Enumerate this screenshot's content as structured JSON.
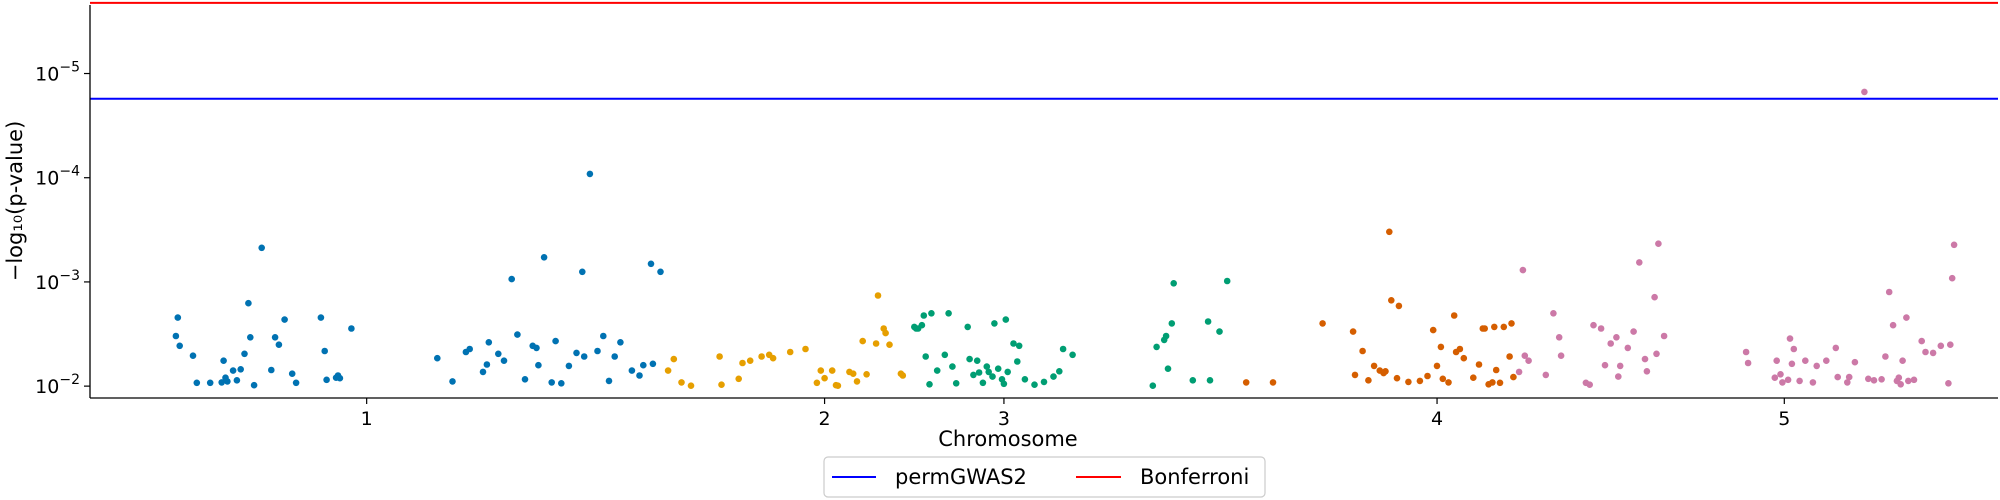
{
  "chart_data": {
    "type": "scatter",
    "title": "",
    "xlabel": "Chromosome",
    "ylabel": "−log₁₀(p-value)",
    "yscale": "log-reversed (p-value)",
    "ylim_p": [
      0.013,
      2.2e-06
    ],
    "ytick_labels": [
      {
        "p": 0.01,
        "base": "10",
        "exp": "−2"
      },
      {
        "p": 0.001,
        "base": "10",
        "exp": "−3"
      },
      {
        "p": 0.0001,
        "base": "10",
        "exp": "−4"
      },
      {
        "p": 1e-05,
        "base": "10",
        "exp": "−5"
      }
    ],
    "xticks": [
      {
        "label": "1",
        "pos": 0.145
      },
      {
        "label": "2",
        "pos": 0.385
      },
      {
        "label": "3",
        "pos": 0.479
      },
      {
        "label": "4",
        "pos": 0.706
      },
      {
        "label": "5",
        "pos": 0.888
      }
    ],
    "xlim": [
      0,
      1
    ],
    "chromosome_colors": [
      "#0072B2",
      "#E69F00",
      "#009E73",
      "#D55E00",
      "#CC79A7"
    ],
    "thresholds": [
      {
        "name": "permGWAS2",
        "p": 1.75e-05,
        "color": "#0000FF"
      },
      {
        "name": "Bonferroni",
        "p": 2.1e-06,
        "color": "#FF0000"
      }
    ],
    "legend_position": "bottom-center",
    "grid": false,
    "series": [
      {
        "chromosome": "1",
        "color_index": 0,
        "points": [
          [
            0.045,
            0.0033
          ],
          [
            0.046,
            0.0022
          ],
          [
            0.047,
            0.0041
          ],
          [
            0.054,
            0.0051
          ],
          [
            0.056,
            0.0093
          ],
          [
            0.063,
            0.0093
          ],
          [
            0.069,
            0.0092
          ],
          [
            0.07,
            0.0057
          ],
          [
            0.071,
            0.0083
          ],
          [
            0.072,
            0.009
          ],
          [
            0.075,
            0.0071
          ],
          [
            0.077,
            0.0088
          ],
          [
            0.079,
            0.0069
          ],
          [
            0.081,
            0.0049
          ],
          [
            0.083,
            0.0016
          ],
          [
            0.084,
            0.0034
          ],
          [
            0.086,
            0.0098
          ],
          [
            0.09,
            0.00047
          ],
          [
            0.095,
            0.007
          ],
          [
            0.097,
            0.0034
          ],
          [
            0.099,
            0.004
          ],
          [
            0.102,
            0.0023
          ],
          [
            0.106,
            0.0076
          ],
          [
            0.108,
            0.0093
          ],
          [
            0.121,
            0.0022
          ],
          [
            0.123,
            0.0046
          ],
          [
            0.124,
            0.0087
          ],
          [
            0.129,
            0.0083
          ],
          [
            0.13,
            0.0079
          ],
          [
            0.131,
            0.0084
          ],
          [
            0.137,
            0.0028
          ],
          [
            0.182,
            0.0054
          ],
          [
            0.19,
            0.009
          ],
          [
            0.197,
            0.0047
          ],
          [
            0.199,
            0.0044
          ],
          [
            0.206,
            0.0073
          ],
          [
            0.208,
            0.0062
          ],
          [
            0.209,
            0.0038
          ],
          [
            0.214,
            0.0049
          ],
          [
            0.217,
            0.0057
          ],
          [
            0.221,
            0.00094
          ],
          [
            0.224,
            0.0032
          ],
          [
            0.228,
            0.0086
          ],
          [
            0.232,
            0.0041
          ],
          [
            0.234,
            0.0043
          ],
          [
            0.235,
            0.0063
          ],
          [
            0.238,
            0.00058
          ],
          [
            0.242,
            0.0092
          ],
          [
            0.244,
            0.0037
          ],
          [
            0.247,
            0.0094
          ],
          [
            0.251,
            0.0064
          ],
          [
            0.255,
            0.0048
          ],
          [
            0.258,
            0.0008
          ],
          [
            0.259,
            0.0052
          ],
          [
            0.262,
            9.2e-05
          ],
          [
            0.266,
            0.0046
          ],
          [
            0.269,
            0.0033
          ],
          [
            0.272,
            0.0089
          ],
          [
            0.275,
            0.0052
          ],
          [
            0.278,
            0.0038
          ],
          [
            0.284,
            0.0071
          ],
          [
            0.288,
            0.0079
          ],
          [
            0.29,
            0.0063
          ],
          [
            0.294,
            0.00067
          ],
          [
            0.295,
            0.0061
          ],
          [
            0.299,
            0.0008
          ]
        ]
      },
      {
        "chromosome": "2",
        "color_index": 1,
        "points": [
          [
            0.303,
            0.0071
          ],
          [
            0.306,
            0.0055
          ],
          [
            0.31,
            0.0092
          ],
          [
            0.315,
            0.0099
          ],
          [
            0.33,
            0.0052
          ],
          [
            0.331,
            0.0097
          ],
          [
            0.34,
            0.0085
          ],
          [
            0.342,
            0.006
          ],
          [
            0.346,
            0.0057
          ],
          [
            0.352,
            0.0052
          ],
          [
            0.356,
            0.005
          ],
          [
            0.358,
            0.0054
          ],
          [
            0.367,
            0.0047
          ],
          [
            0.375,
            0.0044
          ],
          [
            0.381,
            0.0093
          ],
          [
            0.383,
            0.0071
          ],
          [
            0.385,
            0.0084
          ],
          [
            0.389,
            0.0071
          ],
          [
            0.391,
            0.0098
          ],
          [
            0.392,
            0.0099
          ],
          [
            0.398,
            0.0073
          ],
          [
            0.4,
            0.0076
          ],
          [
            0.402,
            0.009
          ],
          [
            0.405,
            0.0037
          ],
          [
            0.407,
            0.0077
          ],
          [
            0.412,
            0.0039
          ],
          [
            0.413,
            0.00135
          ],
          [
            0.416,
            0.0028
          ],
          [
            0.417,
            0.0031
          ],
          [
            0.419,
            0.004
          ],
          [
            0.425,
            0.0076
          ],
          [
            0.426,
            0.0079
          ]
        ]
      },
      {
        "chromosome": "3",
        "color_index": 2,
        "points": [
          [
            0.432,
            0.0027
          ],
          [
            0.433,
            0.0028
          ],
          [
            0.434,
            0.0028
          ],
          [
            0.436,
            0.0026
          ],
          [
            0.437,
            0.0021
          ],
          [
            0.438,
            0.0052
          ],
          [
            0.44,
            0.0096
          ],
          [
            0.441,
            0.002
          ],
          [
            0.444,
            0.0071
          ],
          [
            0.448,
            0.005
          ],
          [
            0.45,
            0.002
          ],
          [
            0.452,
            0.0065
          ],
          [
            0.454,
            0.0094
          ],
          [
            0.46,
            0.0027
          ],
          [
            0.461,
            0.0055
          ],
          [
            0.463,
            0.0078
          ],
          [
            0.465,
            0.0057
          ],
          [
            0.466,
            0.0074
          ],
          [
            0.468,
            0.0093
          ],
          [
            0.47,
            0.0065
          ],
          [
            0.471,
            0.0073
          ],
          [
            0.473,
            0.0081
          ],
          [
            0.474,
            0.0025
          ],
          [
            0.476,
            0.0068
          ],
          [
            0.478,
            0.0086
          ],
          [
            0.479,
            0.0095
          ],
          [
            0.48,
            0.0023
          ],
          [
            0.481,
            0.0073
          ],
          [
            0.484,
            0.0039
          ],
          [
            0.486,
            0.0058
          ],
          [
            0.487,
            0.0041
          ],
          [
            0.49,
            0.0086
          ],
          [
            0.495,
            0.0097
          ],
          [
            0.5,
            0.0091
          ],
          [
            0.505,
            0.0081
          ],
          [
            0.508,
            0.0072
          ],
          [
            0.51,
            0.0044
          ],
          [
            0.515,
            0.005
          ],
          [
            0.557,
            0.0099
          ],
          [
            0.559,
            0.0042
          ],
          [
            0.563,
            0.0036
          ],
          [
            0.564,
            0.0033
          ],
          [
            0.565,
            0.0068
          ],
          [
            0.567,
            0.0025
          ],
          [
            0.568,
            0.00103
          ],
          [
            0.578,
            0.0088
          ],
          [
            0.586,
            0.0024
          ],
          [
            0.587,
            0.0088
          ],
          [
            0.592,
            0.003
          ],
          [
            0.596,
            0.00098
          ]
        ]
      },
      {
        "chromosome": "4",
        "color_index": 3,
        "points": [
          [
            0.606,
            0.0092
          ],
          [
            0.62,
            0.0092
          ],
          [
            0.646,
            0.0025
          ],
          [
            0.662,
            0.003
          ],
          [
            0.663,
            0.0078
          ],
          [
            0.667,
            0.0046
          ],
          [
            0.67,
            0.0088
          ],
          [
            0.673,
            0.0064
          ],
          [
            0.676,
            0.0071
          ],
          [
            0.678,
            0.0075
          ],
          [
            0.679,
            0.0072
          ],
          [
            0.681,
            0.00033
          ],
          [
            0.682,
            0.0015
          ],
          [
            0.685,
            0.0084
          ],
          [
            0.686,
            0.0017
          ],
          [
            0.691,
            0.0091
          ],
          [
            0.697,
            0.0089
          ],
          [
            0.701,
            0.008
          ],
          [
            0.704,
            0.0029
          ],
          [
            0.706,
            0.0064
          ],
          [
            0.708,
            0.0042
          ],
          [
            0.709,
            0.0085
          ],
          [
            0.712,
            0.0092
          ],
          [
            0.715,
            0.0021
          ],
          [
            0.716,
            0.0047
          ],
          [
            0.718,
            0.0044
          ],
          [
            0.72,
            0.0054
          ],
          [
            0.725,
            0.0083
          ],
          [
            0.728,
            0.0062
          ],
          [
            0.73,
            0.0028
          ],
          [
            0.731,
            0.0028
          ],
          [
            0.733,
            0.0096
          ],
          [
            0.735,
            0.0092
          ],
          [
            0.736,
            0.0027
          ],
          [
            0.737,
            0.007
          ],
          [
            0.739,
            0.0093
          ],
          [
            0.741,
            0.0027
          ],
          [
            0.744,
            0.0052
          ],
          [
            0.745,
            0.0025
          ],
          [
            0.746,
            0.0082
          ]
        ]
      },
      {
        "chromosome": "5",
        "color_index": 4,
        "points": [
          [
            0.749,
            0.0073
          ],
          [
            0.751,
            0.00077
          ],
          [
            0.752,
            0.0051
          ],
          [
            0.754,
            0.0057
          ],
          [
            0.763,
            0.0078
          ],
          [
            0.767,
            0.002
          ],
          [
            0.77,
            0.0034
          ],
          [
            0.771,
            0.0051
          ],
          [
            0.784,
            0.0093
          ],
          [
            0.786,
            0.0097
          ],
          [
            0.788,
            0.0026
          ],
          [
            0.792,
            0.0028
          ],
          [
            0.794,
            0.0063
          ],
          [
            0.797,
            0.0039
          ],
          [
            0.8,
            0.0034
          ],
          [
            0.801,
            0.0081
          ],
          [
            0.802,
            0.0064
          ],
          [
            0.806,
            0.0043
          ],
          [
            0.809,
            0.003
          ],
          [
            0.812,
            0.00065
          ],
          [
            0.815,
            0.0055
          ],
          [
            0.816,
            0.0072
          ],
          [
            0.82,
            0.0014
          ],
          [
            0.821,
            0.0049
          ],
          [
            0.822,
            0.00043
          ],
          [
            0.825,
            0.0033
          ],
          [
            0.868,
            0.0047
          ],
          [
            0.869,
            0.006
          ],
          [
            0.883,
            0.0083
          ],
          [
            0.884,
            0.0057
          ],
          [
            0.886,
            0.0077
          ],
          [
            0.887,
            0.0092
          ],
          [
            0.89,
            0.0087
          ],
          [
            0.891,
            0.0035
          ],
          [
            0.892,
            0.0061
          ],
          [
            0.893,
            0.0044
          ],
          [
            0.896,
            0.0089
          ],
          [
            0.899,
            0.0057
          ],
          [
            0.903,
            0.0092
          ],
          [
            0.905,
            0.0064
          ],
          [
            0.91,
            0.0057
          ],
          [
            0.915,
            0.0043
          ],
          [
            0.916,
            0.0082
          ],
          [
            0.921,
            0.0092
          ],
          [
            0.922,
            0.0082
          ],
          [
            0.925,
            0.0059
          ],
          [
            0.93,
            1.5e-05
          ],
          [
            0.932,
            0.0085
          ],
          [
            0.935,
            0.0088
          ],
          [
            0.939,
            0.0086
          ],
          [
            0.941,
            0.0052
          ],
          [
            0.943,
            0.00125
          ],
          [
            0.945,
            0.0026
          ],
          [
            0.947,
            0.0089
          ],
          [
            0.948,
            0.0083
          ],
          [
            0.949,
            0.0096
          ],
          [
            0.95,
            0.0057
          ],
          [
            0.952,
            0.0022
          ],
          [
            0.953,
            0.0089
          ],
          [
            0.956,
            0.0087
          ],
          [
            0.96,
            0.0037
          ],
          [
            0.962,
            0.0047
          ],
          [
            0.966,
            0.0048
          ],
          [
            0.97,
            0.0041
          ],
          [
            0.974,
            0.0094
          ],
          [
            0.975,
            0.004
          ],
          [
            0.976,
            0.00092
          ],
          [
            0.977,
            0.00044
          ]
        ]
      }
    ]
  }
}
